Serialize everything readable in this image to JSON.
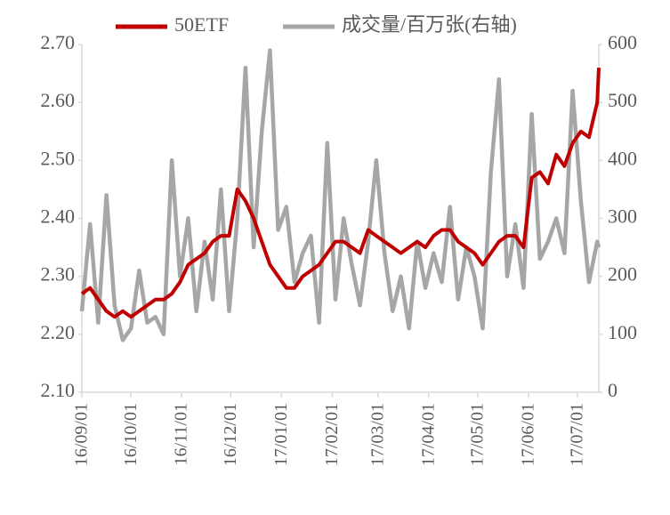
{
  "chart_data": {
    "type": "line",
    "x": [
      "16/09/01",
      "16/09/06",
      "16/09/11",
      "16/09/16",
      "16/09/21",
      "16/09/26",
      "16/10/01",
      "16/10/06",
      "16/10/11",
      "16/10/16",
      "16/10/21",
      "16/10/26",
      "16/10/31",
      "16/11/05",
      "16/11/10",
      "16/11/15",
      "16/11/20",
      "16/11/25",
      "16/11/30",
      "16/12/05",
      "16/12/10",
      "16/12/15",
      "16/12/20",
      "16/12/25",
      "16/12/30",
      "17/01/04",
      "17/01/09",
      "17/01/14",
      "17/01/19",
      "17/01/24",
      "17/01/29",
      "17/02/03",
      "17/02/08",
      "17/02/13",
      "17/02/18",
      "17/02/23",
      "17/02/28",
      "17/03/05",
      "17/03/10",
      "17/03/15",
      "17/03/20",
      "17/03/25",
      "17/03/30",
      "17/04/04",
      "17/04/09",
      "17/04/14",
      "17/04/19",
      "17/04/24",
      "17/04/29",
      "17/05/04",
      "17/05/09",
      "17/05/14",
      "17/05/19",
      "17/05/24",
      "17/05/29",
      "17/06/03",
      "17/06/08",
      "17/06/13",
      "17/06/18",
      "17/06/23",
      "17/06/28",
      "17/07/03",
      "17/07/08",
      "17/07/13",
      "17/07/14"
    ],
    "series": [
      {
        "name": "50ETF",
        "color": "#c00000",
        "axis": "y",
        "values": [
          2.27,
          2.28,
          2.26,
          2.24,
          2.23,
          2.24,
          2.23,
          2.24,
          2.25,
          2.26,
          2.26,
          2.27,
          2.29,
          2.32,
          2.33,
          2.34,
          2.36,
          2.37,
          2.37,
          2.45,
          2.43,
          2.4,
          2.36,
          2.32,
          2.3,
          2.28,
          2.28,
          2.3,
          2.31,
          2.32,
          2.34,
          2.36,
          2.36,
          2.35,
          2.34,
          2.38,
          2.37,
          2.36,
          2.35,
          2.34,
          2.35,
          2.36,
          2.35,
          2.37,
          2.38,
          2.38,
          2.36,
          2.35,
          2.34,
          2.32,
          2.34,
          2.36,
          2.37,
          2.37,
          2.35,
          2.47,
          2.48,
          2.46,
          2.51,
          2.49,
          2.53,
          2.55,
          2.54,
          2.6,
          2.66
        ]
      },
      {
        "name": "成交量/百万张(右轴)",
        "color": "#a6a6a6",
        "axis": "y2",
        "values": [
          140,
          290,
          120,
          340,
          150,
          90,
          110,
          210,
          120,
          130,
          100,
          400,
          200,
          300,
          140,
          260,
          160,
          350,
          140,
          300,
          560,
          250,
          450,
          590,
          280,
          320,
          190,
          240,
          270,
          120,
          430,
          160,
          300,
          220,
          150,
          260,
          400,
          240,
          140,
          200,
          110,
          260,
          180,
          240,
          190,
          320,
          160,
          250,
          200,
          110,
          380,
          540,
          200,
          290,
          180,
          480,
          230,
          260,
          300,
          240,
          520,
          330,
          190,
          260,
          250
        ]
      }
    ],
    "xlim": [
      "16/09/01",
      "17/07/14"
    ],
    "xticks": [
      "16/09/01",
      "16/10/01",
      "16/11/01",
      "16/12/01",
      "17/01/01",
      "17/02/01",
      "17/03/01",
      "17/04/01",
      "17/05/01",
      "17/06/01",
      "17/07/01"
    ],
    "ylim": [
      2.1,
      2.7
    ],
    "yticks": [
      {
        "value": 2.1,
        "label": "2.10"
      },
      {
        "value": 2.2,
        "label": "2.20"
      },
      {
        "value": 2.3,
        "label": "2.30"
      },
      {
        "value": 2.4,
        "label": "2.40"
      },
      {
        "value": 2.5,
        "label": "2.50"
      },
      {
        "value": 2.6,
        "label": "2.60"
      },
      {
        "value": 2.7,
        "label": "2.70"
      }
    ],
    "y2lim": [
      0,
      600
    ],
    "y2ticks": [
      0,
      100,
      200,
      300,
      400,
      500,
      600
    ],
    "legend": "top"
  }
}
